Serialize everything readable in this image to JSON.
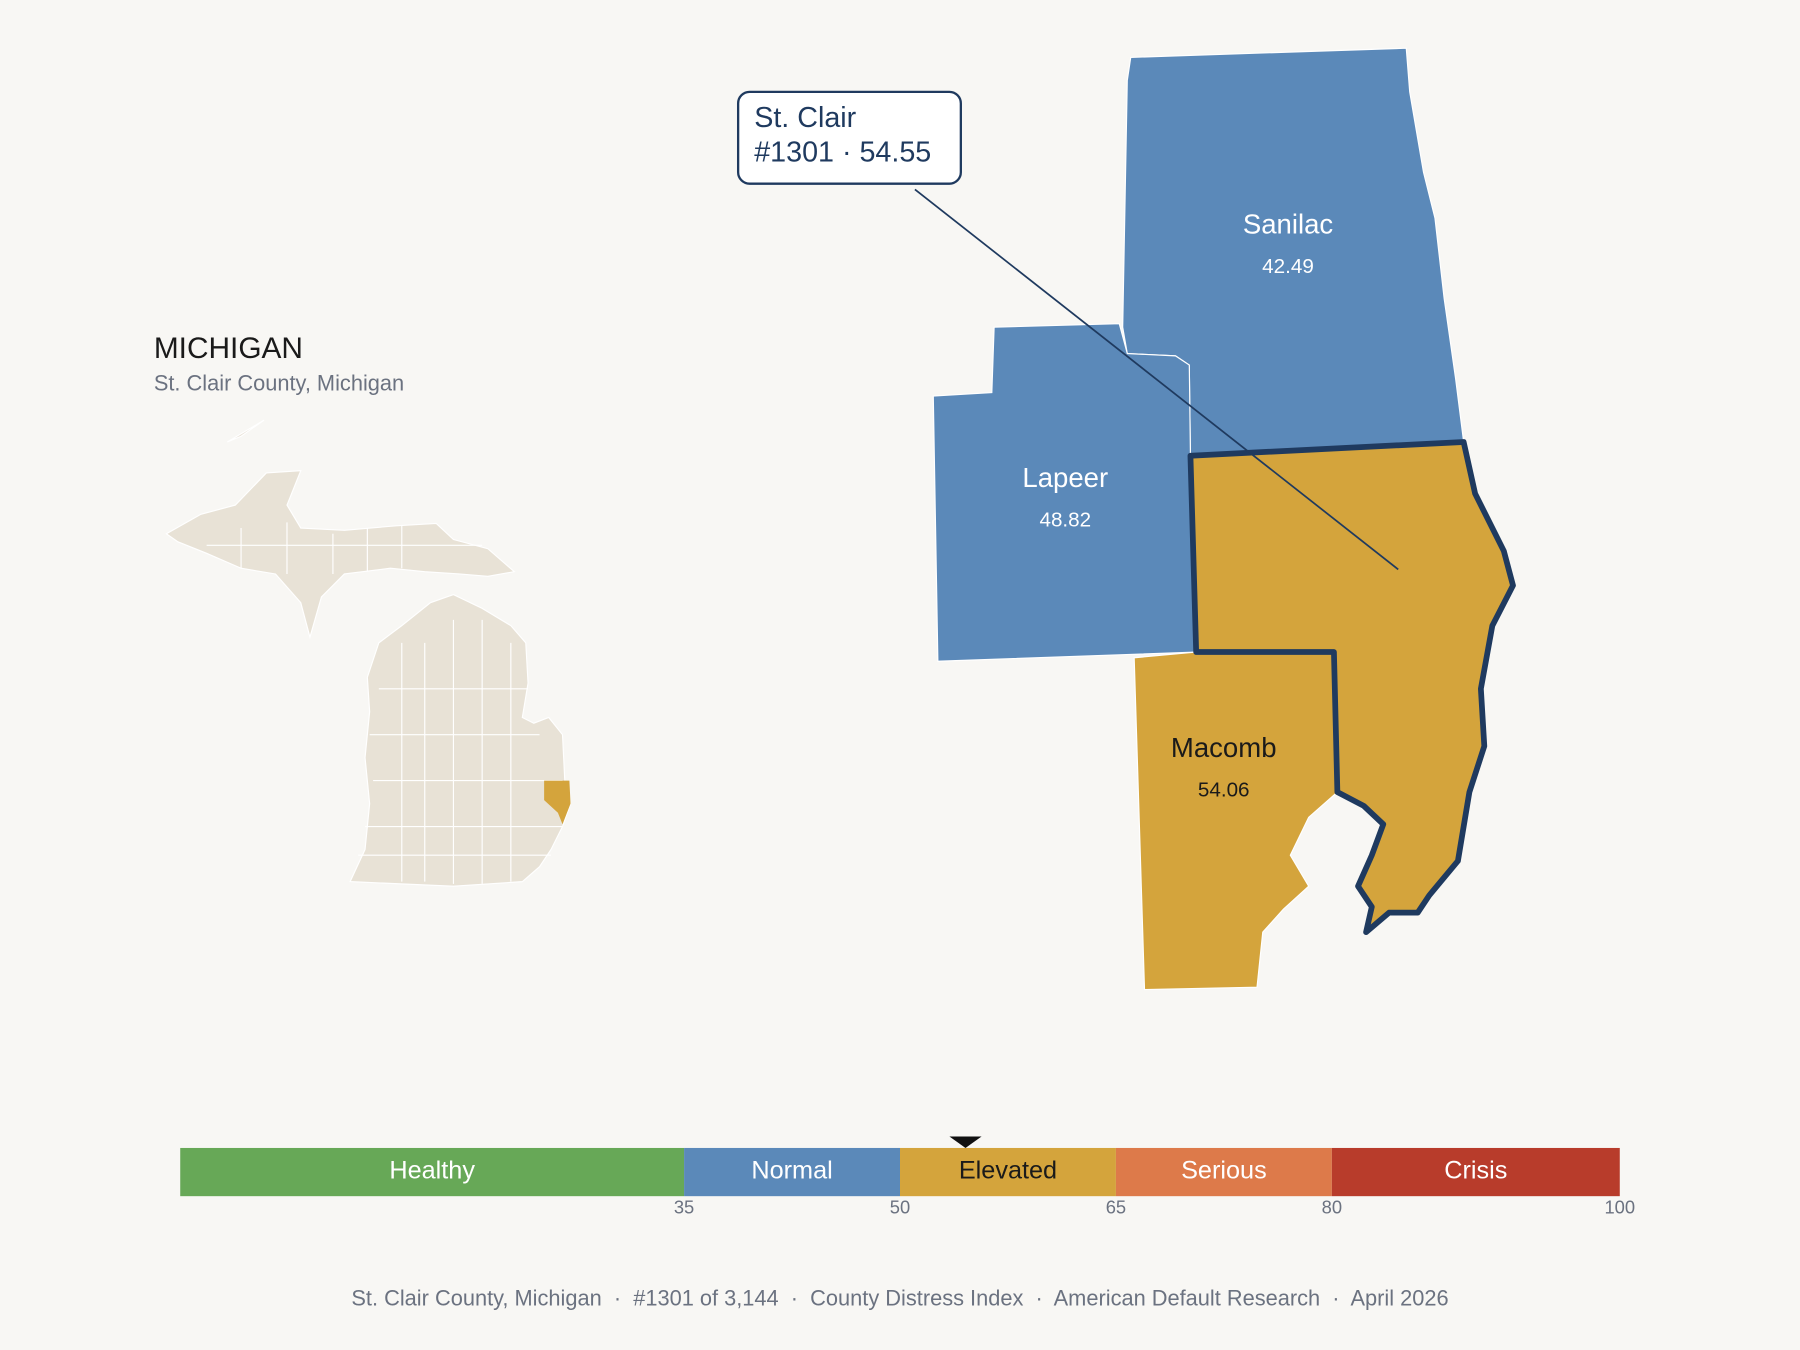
{
  "header": {
    "title": "MICHIGAN",
    "subtitle": "St. Clair County, Michigan"
  },
  "callout": {
    "line1": "St. Clair",
    "line2": "#1301 · 54.55"
  },
  "counties": [
    {
      "name": "Sanilac",
      "value": 42.49,
      "color": "#5b89b9"
    },
    {
      "name": "Lapeer",
      "value": 48.82,
      "color": "#5b89b9"
    },
    {
      "name": "Macomb",
      "value": 54.06,
      "color": "#d4a43c"
    }
  ],
  "scale": {
    "lim": [
      0,
      100
    ],
    "ticks": [
      35,
      50,
      65,
      80,
      100
    ],
    "marker": 54.55,
    "bands": [
      {
        "name": "Healthy",
        "color": "#67a857"
      },
      {
        "name": "Normal",
        "color": "#5b89b9"
      },
      {
        "name": "Elevated",
        "color": "#d4a43c"
      },
      {
        "name": "Serious",
        "color": "#dd7a4a"
      },
      {
        "name": "Crisis",
        "color": "#b83c2b"
      }
    ]
  },
  "footer": "St. Clair County, Michigan  ·  #1301 of 3,144  ·  County Distress Index  ·  American Default Research  ·  April 2026"
}
